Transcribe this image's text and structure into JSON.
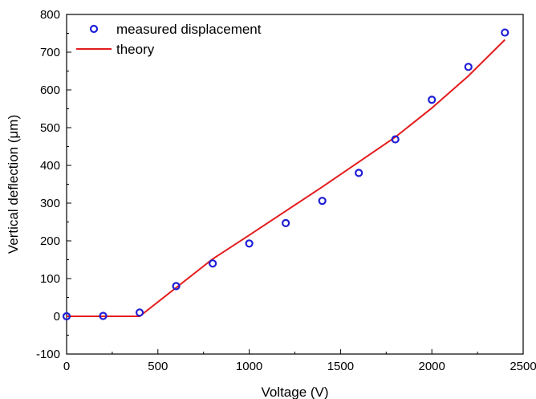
{
  "chart_data": {
    "type": "scatter",
    "title": "",
    "xlabel": "Voltage (V)",
    "ylabel": "Vertical deflection (μm)",
    "xlim": [
      0,
      2500
    ],
    "ylim": [
      -100,
      800
    ],
    "x_ticks": [
      0,
      500,
      1000,
      1500,
      2000,
      2500
    ],
    "y_ticks": [
      -100,
      0,
      100,
      200,
      300,
      400,
      500,
      600,
      700,
      800
    ],
    "grid": false,
    "legend_position": "top-left",
    "series": [
      {
        "name": "measured displacement",
        "kind": "markers",
        "marker": "open-circle",
        "color": "#1f1fd6",
        "x": [
          0,
          200,
          400,
          600,
          800,
          1000,
          1200,
          1400,
          1600,
          1800,
          2000,
          2200,
          2400
        ],
        "y": [
          0,
          1,
          10,
          80,
          140,
          193,
          247,
          306,
          380,
          469,
          574,
          661,
          752
        ]
      },
      {
        "name": "theory",
        "kind": "line",
        "color": "#e41c1c",
        "x": [
          0,
          400,
          800,
          1000,
          1400,
          1800,
          2000,
          2200,
          2400
        ],
        "y": [
          0,
          0,
          152,
          215,
          343,
          475,
          552,
          637,
          733
        ]
      }
    ]
  }
}
